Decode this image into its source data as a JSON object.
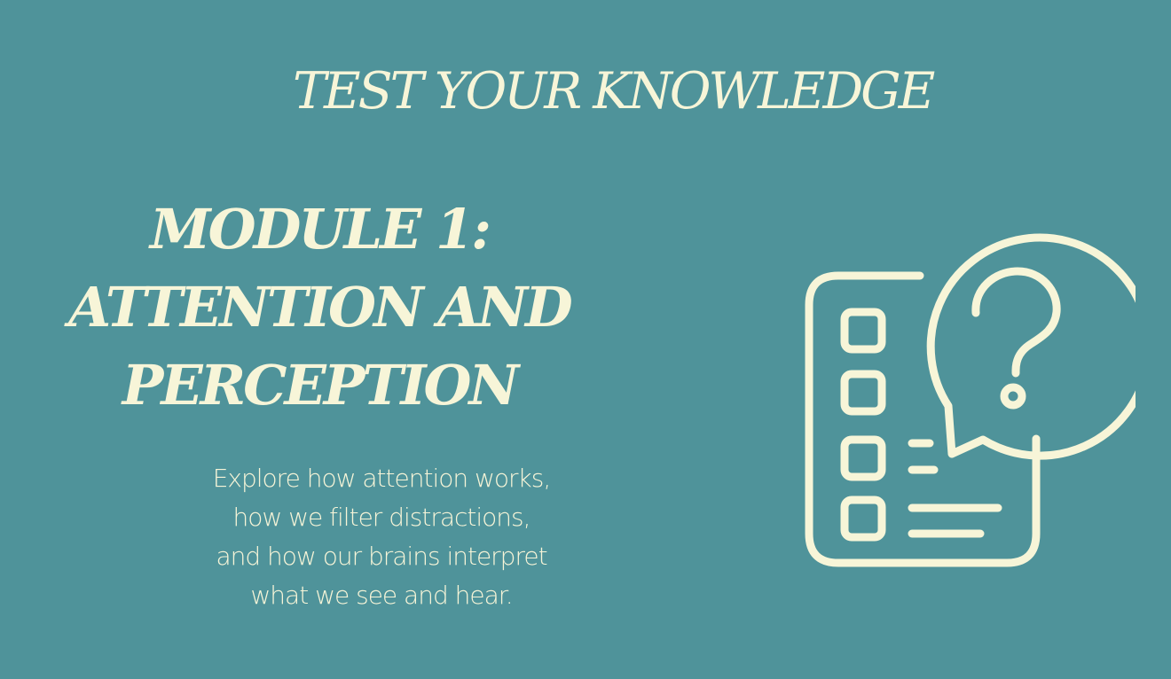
{
  "slide": {
    "top_title": "TEST YOUR KNOWLEDGE",
    "module_title_lines": [
      "MODULE 1:",
      "ATTENTION AND",
      "PERCEPTION"
    ],
    "description_lines": [
      "Explore how attention works,",
      "how we filter distractions,",
      "and how our brains interpret",
      "what we see and hear."
    ]
  },
  "icon": {
    "name": "quiz-question-icon"
  },
  "colors": {
    "background": "#4f939a",
    "text": "#f7f5d8"
  }
}
